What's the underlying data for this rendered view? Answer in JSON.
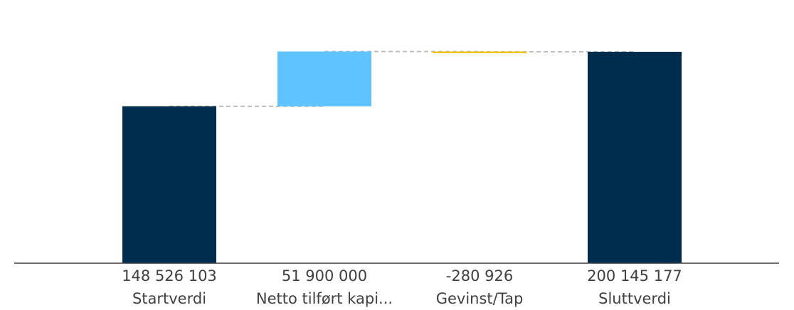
{
  "chart_data": {
    "type": "waterfall",
    "title": "",
    "xlabel": "",
    "ylabel": "",
    "ylim": [
      0,
      210000000
    ],
    "grid": false,
    "legend": "none",
    "categories": [
      "Startverdi",
      "Netto tilført kapi...",
      "Gevinst/Tap",
      "Sluttverdi"
    ],
    "values": [
      148526103,
      51900000,
      -280926,
      200145177
    ],
    "value_labels": [
      "148 526 103",
      "51 900 000",
      "-280 926",
      "200 145 177"
    ],
    "kinds": [
      "total",
      "delta",
      "delta",
      "total"
    ],
    "colors": {
      "total": "#002d4d",
      "increase": "#5fc3ff",
      "decrease": "#f5c518",
      "connector": "#bfbfbf",
      "axis": "#404040"
    }
  }
}
